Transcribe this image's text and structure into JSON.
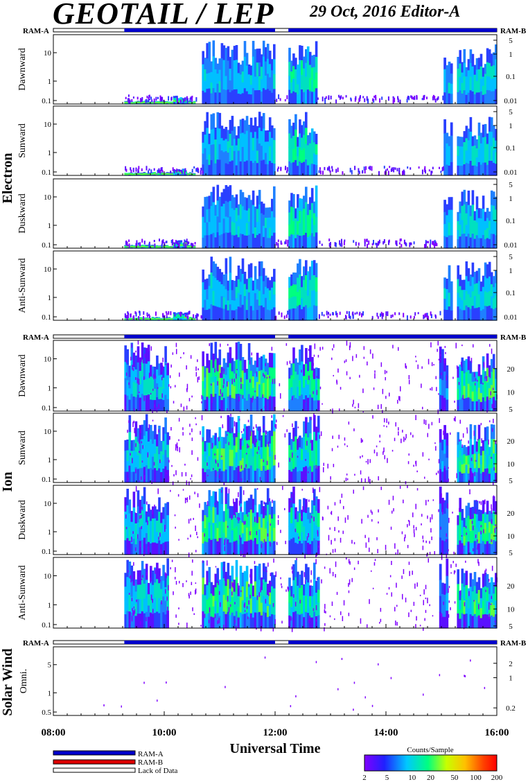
{
  "header": {
    "title": "GEOTAIL / LEP",
    "date_editor": "29 Oct, 2016   Editor-A"
  },
  "groups": {
    "electron": "Electron",
    "ion": "Ion",
    "solar": "Solar Wind"
  },
  "mode_labels": {
    "ram_a": "RAM-A",
    "ram_b": "RAM-B"
  },
  "x_axis": {
    "label": "Universal Time",
    "ticks": [
      "08:00",
      "10:00",
      "12:00",
      "14:00",
      "16:00"
    ]
  },
  "legend": {
    "items": [
      "RAM-A",
      "RAM-B",
      "Lack of Data"
    ],
    "colors": [
      "#0000cc",
      "#dd0000",
      "#ffffff"
    ]
  },
  "colorbar": {
    "title": "Counts/Sample",
    "ticks": [
      "2",
      "5",
      "10",
      "20",
      "50",
      "100",
      "200"
    ]
  },
  "chart_data": [
    {
      "type": "heatmap",
      "ylabel": "Dawnward",
      "y_ticks": [
        "10",
        "1",
        "0.1"
      ],
      "right_ticks": [
        "5",
        "1",
        "0.1",
        "0.01"
      ],
      "x_range": [
        "08:00",
        "16:00"
      ]
    },
    {
      "type": "heatmap",
      "ylabel": "Sunward",
      "y_ticks": [
        "10",
        "1",
        "0.1"
      ],
      "right_ticks": [
        "5",
        "1",
        "0.1",
        "0.01"
      ],
      "x_range": [
        "08:00",
        "16:00"
      ]
    },
    {
      "type": "heatmap",
      "ylabel": "Duskward",
      "y_ticks": [
        "10",
        "1",
        "0.1"
      ],
      "right_ticks": [
        "5",
        "1",
        "0.1",
        "0.01"
      ],
      "x_range": [
        "08:00",
        "16:00"
      ]
    },
    {
      "type": "heatmap",
      "ylabel": "Anti-Sunward",
      "y_ticks": [
        "10",
        "1",
        "0.1"
      ],
      "right_ticks": [
        "5",
        "1",
        "0.1",
        "0.01"
      ],
      "x_range": [
        "08:00",
        "16:00"
      ]
    },
    {
      "type": "heatmap",
      "ylabel": "Dawnward",
      "y_ticks": [
        "10",
        "1",
        "0.1"
      ],
      "right_ticks": [
        "20",
        "10",
        "5"
      ],
      "x_range": [
        "08:00",
        "16:00"
      ]
    },
    {
      "type": "heatmap",
      "ylabel": "Sunward",
      "y_ticks": [
        "10",
        "1",
        "0.1"
      ],
      "right_ticks": [
        "20",
        "10",
        "5"
      ],
      "x_range": [
        "08:00",
        "16:00"
      ]
    },
    {
      "type": "heatmap",
      "ylabel": "Duskward",
      "y_ticks": [
        "10",
        "1",
        "0.1"
      ],
      "right_ticks": [
        "20",
        "10",
        "5"
      ],
      "x_range": [
        "08:00",
        "16:00"
      ]
    },
    {
      "type": "heatmap",
      "ylabel": "Anti-Sunward",
      "y_ticks": [
        "10",
        "1",
        "0.1"
      ],
      "right_ticks": [
        "20",
        "10",
        "5"
      ],
      "x_range": [
        "08:00",
        "16:00"
      ]
    },
    {
      "type": "heatmap",
      "ylabel": "Omni.",
      "y_ticks": [
        "5",
        "1",
        "0.5"
      ],
      "right_ticks": [
        "2",
        "1",
        "0.2"
      ],
      "x_range": [
        "08:00",
        "16:00"
      ]
    }
  ]
}
